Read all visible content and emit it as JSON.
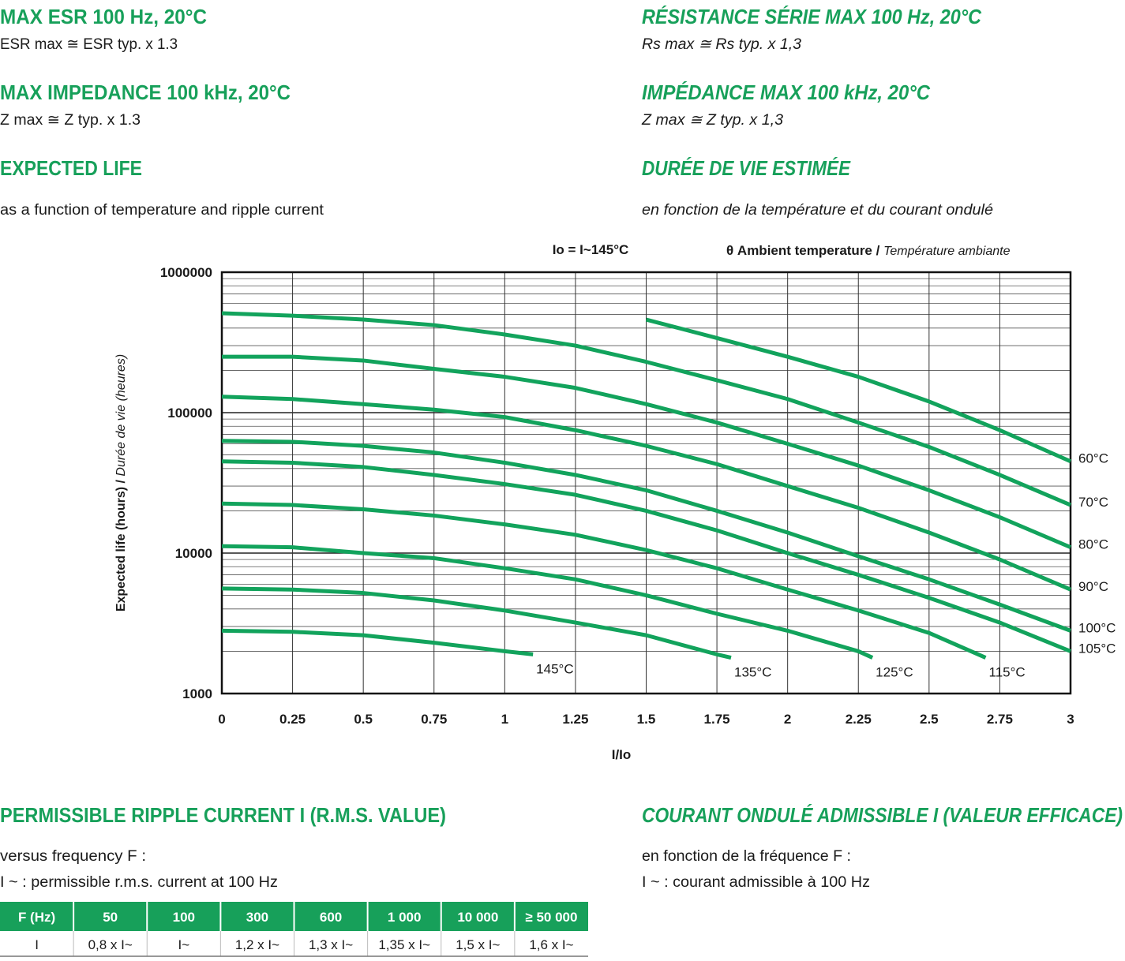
{
  "left": {
    "esr_title": "MAX ESR 100 Hz, 20°C",
    "esr_text": "ESR max ≅ ESR typ. x 1.3",
    "imp_title": "MAX IMPEDANCE 100 kHz, 20°C",
    "imp_text": "Z max ≅ Z typ. x 1.3",
    "life_title": "EXPECTED LIFE",
    "life_text": "as a function of temperature and ripple current",
    "ripple_title": "PERMISSIBLE RIPPLE CURRENT I (R.M.S. VALUE)",
    "ripple_text1": "versus frequency F :",
    "ripple_text2": "I ~ : permissible r.m.s. current at 100 Hz"
  },
  "right": {
    "esr_title": "RÉSISTANCE SÉRIE MAX 100 Hz, 20°C",
    "esr_text": "Rs max ≅ Rs typ. x 1,3",
    "imp_title": "IMPÉDANCE MAX 100 kHz, 20°C",
    "imp_text": "Z max ≅ Z typ. x 1,3",
    "life_title": "DURÉE DE VIE ESTIMÉE",
    "life_text": "en fonction de la température et du courant ondulé",
    "ripple_title": "COURANT ONDULÉ ADMISSIBLE I (VALEUR EFFICACE)",
    "ripple_text1": "en fonction de la fréquence F :",
    "ripple_text2": "I ~ : courant admissible à 100 Hz"
  },
  "chart_data": {
    "type": "line",
    "annotation": "Io = I~145°C",
    "legend_title": "θ Ambient temperature /",
    "legend_title_fr": "Température ambiante",
    "ylabel": "Expected life (hours) /",
    "ylabel_fr": "Durée de vie (heures)",
    "xlabel": "I/Io",
    "xlim": [
      0,
      3
    ],
    "xticks": [
      0,
      0.25,
      0.5,
      0.75,
      1,
      1.25,
      1.5,
      1.75,
      2,
      2.25,
      2.5,
      2.75,
      3
    ],
    "ylim": [
      1000,
      1000000
    ],
    "yticks": [
      1000,
      10000,
      100000,
      1000000
    ],
    "log_y": true,
    "grid": true,
    "minor_grid": true,
    "series": [
      {
        "name": "60°C",
        "color": "#12a35c",
        "x": [
          1.5,
          1.75,
          2,
          2.25,
          2.5,
          2.75,
          3
        ],
        "values": [
          460000,
          340000,
          250000,
          180000,
          120000,
          75000,
          45000
        ]
      },
      {
        "name": "70°C",
        "color": "#12a35c",
        "x": [
          0,
          0.25,
          0.5,
          0.75,
          1,
          1.25,
          1.5,
          1.75,
          2,
          2.25,
          2.5,
          2.75,
          3
        ],
        "values": [
          510000,
          490000,
          460000,
          420000,
          360000,
          300000,
          230000,
          170000,
          125000,
          85000,
          57000,
          36000,
          22000
        ]
      },
      {
        "name": "80°C",
        "color": "#12a35c",
        "x": [
          0,
          0.25,
          0.5,
          0.75,
          1,
          1.25,
          1.5,
          1.75,
          2,
          2.25,
          2.5,
          2.75,
          3
        ],
        "values": [
          250000,
          250000,
          235000,
          205000,
          180000,
          150000,
          115000,
          85000,
          60000,
          42000,
          28000,
          18000,
          11000
        ]
      },
      {
        "name": "90°C",
        "color": "#12a35c",
        "x": [
          0,
          0.25,
          0.5,
          0.75,
          1,
          1.25,
          1.5,
          1.75,
          2,
          2.25,
          2.5,
          2.75,
          3
        ],
        "values": [
          130000,
          125000,
          115000,
          105000,
          93000,
          75000,
          58000,
          43000,
          30000,
          21000,
          14000,
          9000,
          5500
        ]
      },
      {
        "name": "100°C",
        "color": "#12a35c",
        "x": [
          0,
          0.25,
          0.5,
          0.75,
          1,
          1.25,
          1.5,
          1.75,
          2,
          2.25,
          2.5,
          2.75,
          3
        ],
        "values": [
          63000,
          62000,
          58000,
          52000,
          44000,
          36000,
          28000,
          20000,
          14000,
          9500,
          6500,
          4300,
          2800
        ]
      },
      {
        "name": "105°C",
        "color": "#12a35c",
        "x": [
          0,
          0.25,
          0.5,
          0.75,
          1,
          1.25,
          1.5,
          1.75,
          2,
          2.25,
          2.5,
          2.75,
          3
        ],
        "values": [
          45000,
          44000,
          41000,
          36000,
          31000,
          26000,
          20000,
          14500,
          10000,
          7000,
          4800,
          3200,
          2000
        ]
      },
      {
        "name": "115°C",
        "color": "#12a35c",
        "x": [
          0,
          0.25,
          0.5,
          0.75,
          1,
          1.25,
          1.5,
          1.75,
          2,
          2.25,
          2.5,
          2.7
        ],
        "values": [
          22500,
          22000,
          20500,
          18500,
          16000,
          13500,
          10500,
          7800,
          5500,
          3900,
          2700,
          1800
        ]
      },
      {
        "name": "125°C",
        "color": "#12a35c",
        "x": [
          0,
          0.25,
          0.5,
          0.75,
          1,
          1.25,
          1.5,
          1.75,
          2,
          2.25,
          2.3
        ],
        "values": [
          11200,
          11000,
          10000,
          9200,
          7800,
          6500,
          5000,
          3700,
          2800,
          2000,
          1800
        ]
      },
      {
        "name": "135°C",
        "color": "#12a35c",
        "x": [
          0,
          0.25,
          0.5,
          0.75,
          1,
          1.25,
          1.5,
          1.75,
          1.8
        ],
        "values": [
          5600,
          5500,
          5200,
          4600,
          3900,
          3200,
          2600,
          1900,
          1800
        ]
      },
      {
        "name": "145°C",
        "color": "#12a35c",
        "x": [
          0,
          0.25,
          0.5,
          0.75,
          1,
          1.1
        ],
        "values": [
          2800,
          2750,
          2600,
          2300,
          2000,
          1900
        ]
      }
    ]
  },
  "table": {
    "header": [
      "F (Hz)",
      "50",
      "100",
      "300",
      "600",
      "1 000",
      "10 000",
      "≥ 50 000"
    ],
    "rows": [
      [
        "I",
        "0,8 x I~",
        "I~",
        "1,2 x I~",
        "1,3 x I~",
        "1,35 x I~",
        "1,5 x I~",
        "1,6 x I~"
      ]
    ]
  }
}
